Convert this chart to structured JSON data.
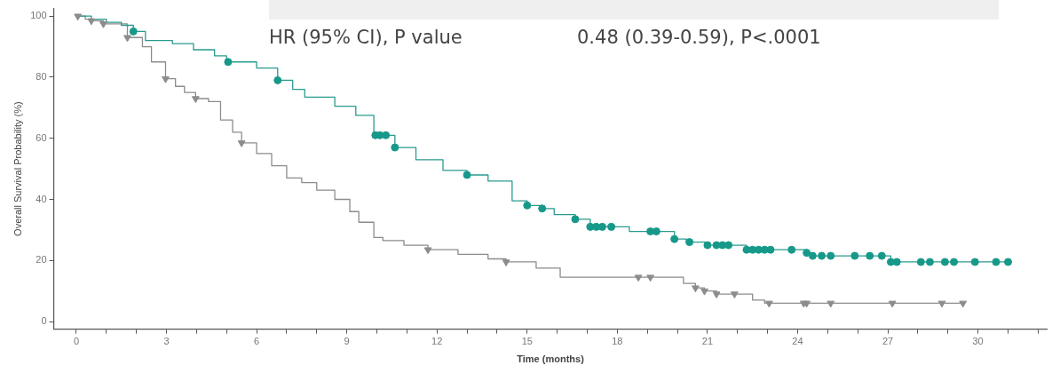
{
  "chart_data": {
    "type": "step",
    "xlabel": "Time (months)",
    "ylabel": "Overall Survival Probability (%)",
    "annotations": [
      "HR (95% CI), P value",
      "0.48 (0.39-0.59), P<.0001"
    ],
    "xlim": [
      -0.75,
      32.3
    ],
    "ylim": [
      -2.5,
      102.5
    ],
    "xticks": [
      0,
      {
        "value": 1,
        "label": null
      },
      {
        "value": 2,
        "label": null
      },
      3,
      {
        "value": 4,
        "label": null
      },
      {
        "value": 5,
        "label": null
      },
      6,
      {
        "value": 7,
        "label": null
      },
      {
        "value": 8,
        "label": null
      },
      9,
      {
        "value": 10,
        "label": null
      },
      {
        "value": 11,
        "label": null
      },
      12,
      {
        "value": 13,
        "label": null
      },
      {
        "value": 14,
        "label": null
      },
      15,
      {
        "value": 16,
        "label": null
      },
      {
        "value": 17,
        "label": null
      },
      18,
      {
        "value": 19,
        "label": null
      },
      {
        "value": 20,
        "label": null
      },
      21,
      {
        "value": 22,
        "label": null
      },
      {
        "value": 23,
        "label": null
      },
      24,
      {
        "value": 25,
        "label": null
      },
      {
        "value": 26,
        "label": null
      },
      27,
      {
        "value": 28,
        "label": null
      },
      {
        "value": 29,
        "label": null
      },
      30,
      {
        "value": 31,
        "label": null
      },
      {
        "value": 32,
        "label": null
      }
    ],
    "yticks": [
      0,
      20,
      40,
      60,
      80,
      100
    ],
    "grid": false,
    "legend": false,
    "series": [
      {
        "color": "#2a9a8e",
        "marker": "none",
        "x": [
          0,
          0.5,
          1,
          1.5,
          1.9,
          2.3,
          3.2,
          3.9,
          4.6,
          5,
          6,
          6.7,
          7.2,
          7.6,
          8.6,
          9.3,
          9.9,
          10.6,
          11.3,
          12.2,
          13,
          13.7,
          14.5,
          15,
          15.5,
          15.9,
          16.6,
          17.1,
          18.4,
          19.9,
          20.3,
          21,
          22.3,
          24.3,
          24.5,
          27.1,
          31
        ],
        "values": [
          100,
          99,
          98,
          97,
          95,
          92,
          91,
          89,
          87,
          85,
          83,
          79,
          76,
          73.5,
          70.5,
          67.5,
          61,
          57,
          53,
          49.5,
          48,
          46,
          39.5,
          38,
          37,
          35,
          33.5,
          31,
          29.5,
          27,
          26,
          25,
          23.5,
          22.5,
          21.5,
          19.5,
          19.5
        ]
      },
      {
        "color": "#8c8c8c",
        "marker": "none",
        "x": [
          0,
          0.3,
          0.5,
          0.9,
          1.7,
          2.2,
          2.5,
          2.97,
          3.3,
          3.6,
          3.97,
          4.4,
          4.8,
          5.2,
          5.5,
          6,
          6.5,
          7,
          7.5,
          8,
          8.6,
          9.1,
          9.4,
          9.9,
          10.2,
          10.9,
          11.7,
          12.7,
          13.7,
          14.3,
          15.3,
          16.1,
          20.2,
          20.6,
          20.9,
          21.3,
          22.5,
          22.9,
          29.5
        ],
        "values": [
          100,
          99,
          98.5,
          97.5,
          93,
          90,
          85,
          79.5,
          77,
          75,
          73,
          72,
          66,
          62,
          58.5,
          55,
          51,
          47,
          45.5,
          43,
          40,
          36,
          32.5,
          27.5,
          26.5,
          25,
          23.5,
          22,
          20.5,
          19.5,
          17.5,
          14.5,
          12.5,
          11,
          10,
          9,
          7,
          6,
          6
        ]
      },
      {
        "type": "scatter",
        "color": "#17998a",
        "marker": "circle",
        "x": [
          1.9,
          5.05,
          6.7,
          9.95,
          10.1,
          10.3,
          10.6,
          13,
          15,
          15.5,
          16.6,
          17.1,
          17.3,
          17.5,
          17.8,
          19.1,
          19.3,
          19.9,
          20.4,
          21,
          21.3,
          21.5,
          21.7,
          22.3,
          22.5,
          22.7,
          22.9,
          23.1,
          23.8,
          24.3,
          24.5,
          24.8,
          25.1,
          25.9,
          26.4,
          26.8,
          27.1,
          27.3,
          28.1,
          28.4,
          28.9,
          29.2,
          29.9,
          30.6,
          31
        ],
        "values": [
          95,
          85,
          79,
          61,
          61,
          61,
          57,
          48,
          38,
          37,
          33.5,
          31,
          31,
          31,
          31,
          29.5,
          29.5,
          27,
          26,
          25,
          25,
          25,
          25,
          23.5,
          23.5,
          23.5,
          23.5,
          23.5,
          23.5,
          22.5,
          21.5,
          21.5,
          21.5,
          21.5,
          21.5,
          21.5,
          19.5,
          19.5,
          19.5,
          19.5,
          19.5,
          19.5,
          19.5,
          19.5,
          19.5
        ]
      },
      {
        "type": "scatter",
        "color": "#8c8c8c",
        "marker": "triangle",
        "x": [
          0.05,
          0.5,
          0.9,
          1.7,
          2.97,
          3.97,
          5.5,
          11.7,
          14.3,
          18.7,
          19.1,
          20.6,
          20.9,
          21.3,
          21.9,
          23.05,
          24.2,
          24.3,
          25.1,
          27.15,
          28.8,
          29.5
        ],
        "values": [
          100,
          98.5,
          97.5,
          93,
          79.5,
          73,
          58.5,
          23.5,
          19.5,
          14.5,
          14.5,
          11,
          10,
          9,
          9,
          6,
          6,
          6,
          6,
          6,
          6,
          6
        ]
      }
    ]
  }
}
